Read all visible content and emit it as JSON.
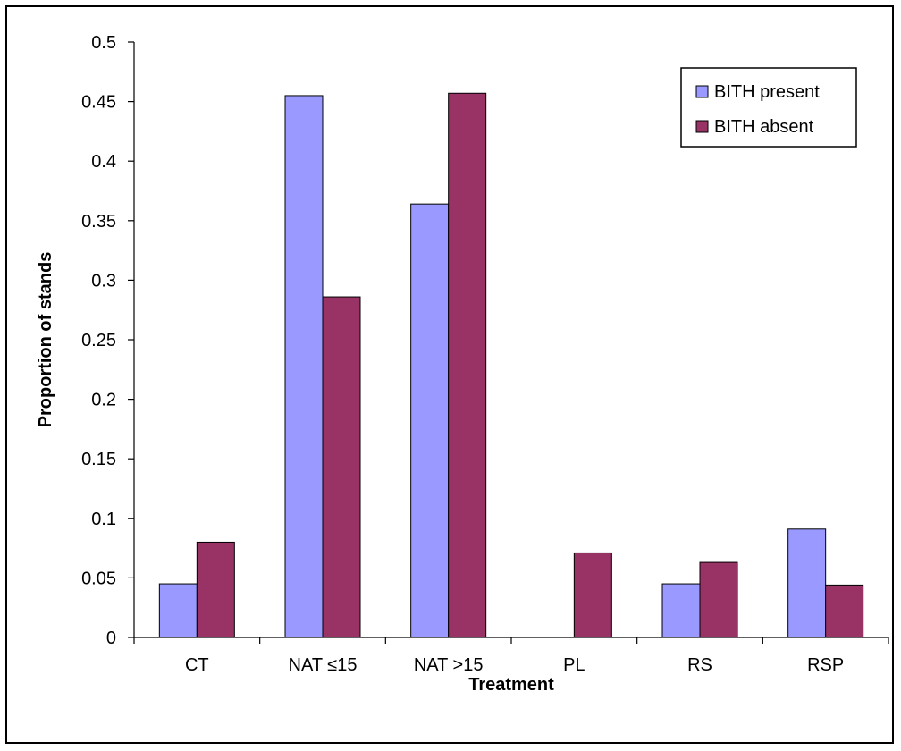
{
  "chart_data": {
    "type": "bar",
    "title": "",
    "xlabel": "Treatment",
    "ylabel": "Proportion of stands",
    "categories": [
      "CT",
      "NAT ≤15",
      "NAT >15",
      "PL",
      "RS",
      "RSP"
    ],
    "series": [
      {
        "name": "BITH present",
        "color": "#9999ff",
        "values": [
          0.045,
          0.455,
          0.364,
          0.0,
          0.045,
          0.091
        ]
      },
      {
        "name": "BITH absent",
        "color": "#993366",
        "values": [
          0.08,
          0.286,
          0.457,
          0.071,
          0.063,
          0.044
        ]
      }
    ],
    "ylim": [
      0,
      0.5
    ],
    "yticks": [
      "0",
      "0.05",
      "0.1",
      "0.15",
      "0.2",
      "0.25",
      "0.3",
      "0.35",
      "0.4",
      "0.45",
      "0.5"
    ],
    "grid": false,
    "legend_position": "top-right"
  }
}
